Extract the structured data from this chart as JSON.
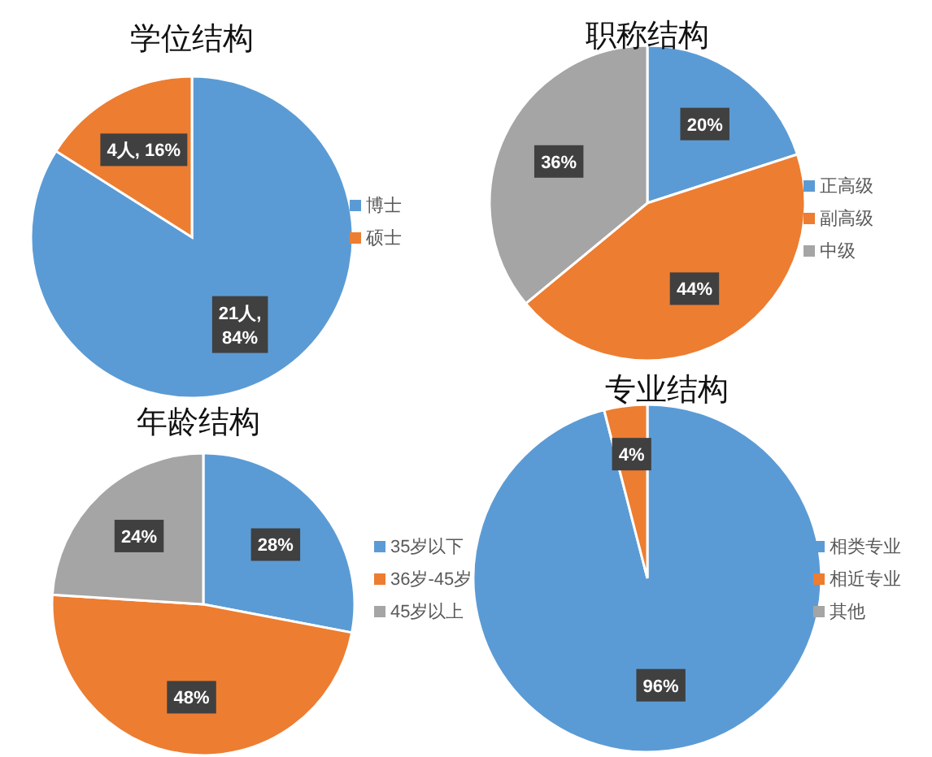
{
  "chart_data": [
    {
      "type": "pie",
      "title": "学位结构",
      "categories": [
        "博士",
        "硕士"
      ],
      "values": [
        84,
        16
      ],
      "value_labels": [
        "21人, 84%",
        "4人, 16%"
      ],
      "colors": [
        "#5b9bd5",
        "#ed7d31"
      ],
      "legend": "right"
    },
    {
      "type": "pie",
      "title": "职称结构",
      "categories": [
        "正高级",
        "副高级",
        "中级"
      ],
      "values": [
        20,
        44,
        36
      ],
      "value_labels": [
        "20%",
        "44%",
        "36%"
      ],
      "colors": [
        "#5b9bd5",
        "#ed7d31",
        "#a5a5a5"
      ],
      "legend": "right"
    },
    {
      "type": "pie",
      "title": "年龄结构",
      "categories": [
        "35岁以下",
        "36岁-45岁",
        "45岁以上"
      ],
      "values": [
        28,
        48,
        24
      ],
      "value_labels": [
        "28%",
        "48%",
        "24%"
      ],
      "colors": [
        "#5b9bd5",
        "#ed7d31",
        "#a5a5a5"
      ],
      "legend": "right"
    },
    {
      "type": "pie",
      "title": "专业结构",
      "categories": [
        "相类专业",
        "相近专业",
        "其他"
      ],
      "values": [
        96,
        4,
        0
      ],
      "value_labels": [
        "96%",
        "4%",
        null
      ],
      "colors": [
        "#5b9bd5",
        "#ed7d31",
        "#a5a5a5"
      ],
      "legend": "right"
    }
  ]
}
